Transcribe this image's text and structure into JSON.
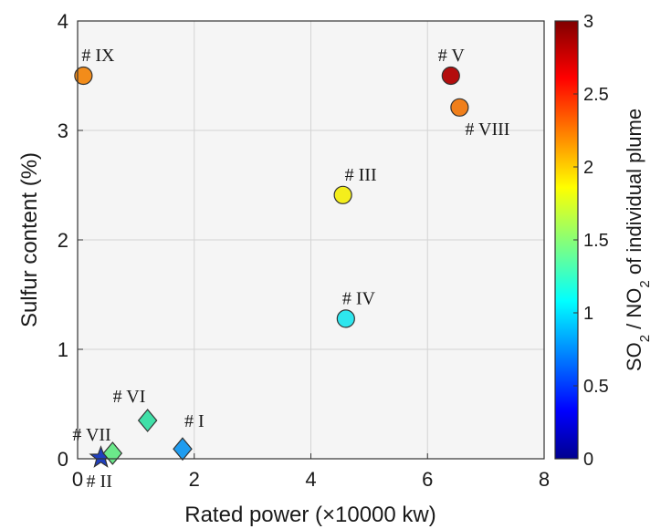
{
  "chart_data": {
    "type": "scatter",
    "xlabel": "Rated power (×10000 kw)",
    "ylabel": "Sulfur content (%)",
    "xlim": [
      0,
      8
    ],
    "ylim": [
      0,
      4
    ],
    "xticks": [
      "0",
      "2",
      "4",
      "6",
      "8"
    ],
    "yticks": [
      "0",
      "1",
      "2",
      "3",
      "4"
    ],
    "grid": true,
    "colorbar": {
      "title_parts": [
        "SO",
        "2",
        " / NO",
        "2",
        " of individual plume"
      ],
      "range": [
        0,
        3
      ],
      "ticks": [
        "0",
        "0.5",
        "1",
        "1.5",
        "2",
        "2.5",
        "3"
      ],
      "colormap": "jet"
    },
    "points": [
      {
        "label": "# I",
        "x": 1.8,
        "y": 0.09,
        "c": 0.75,
        "marker": "diamond",
        "color": "#1f9cef"
      },
      {
        "label": "# II",
        "x": 0.4,
        "y": 0.01,
        "c": 0.05,
        "marker": "star",
        "color": "#1f3fbf"
      },
      {
        "label": "# III",
        "x": 4.55,
        "y": 2.41,
        "c": 2.0,
        "marker": "circle",
        "color": "#f4ee1c"
      },
      {
        "label": "# IV",
        "x": 4.6,
        "y": 1.28,
        "c": 1.0,
        "marker": "circle",
        "color": "#2ee6ee"
      },
      {
        "label": "# V",
        "x": 6.4,
        "y": 3.5,
        "c": 2.9,
        "marker": "circle",
        "color": "#b30d0d"
      },
      {
        "label": "# VI",
        "x": 1.2,
        "y": 0.35,
        "c": 1.3,
        "marker": "diamond",
        "color": "#40e0a8"
      },
      {
        "label": "# VII",
        "x": 0.6,
        "y": 0.05,
        "c": 1.4,
        "marker": "diamond",
        "color": "#6be88a"
      },
      {
        "label": "# VIII",
        "x": 6.55,
        "y": 3.21,
        "c": 2.25,
        "marker": "circle",
        "color": "#f07f1b"
      },
      {
        "label": "# IX",
        "x": 0.1,
        "y": 3.5,
        "c": 2.2,
        "marker": "circle",
        "color": "#f28c1a"
      }
    ]
  }
}
